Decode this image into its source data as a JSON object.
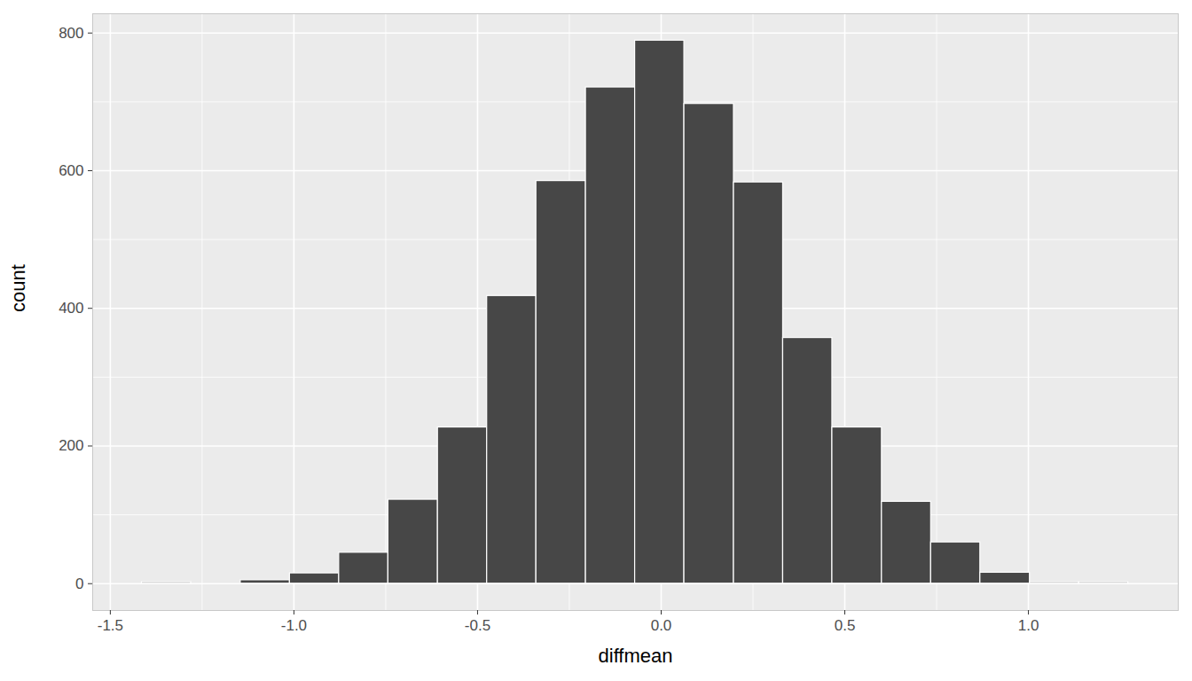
{
  "chart_data": {
    "type": "histogram",
    "xlabel": "diffmean",
    "ylabel": "count",
    "bins": [
      -1.414,
      -1.28,
      -1.145,
      -1.011,
      -0.877,
      -0.743,
      -0.608,
      -0.474,
      -0.34,
      -0.205,
      -0.071,
      0.063,
      0.198,
      0.332,
      0.466,
      0.601,
      0.735,
      0.869,
      1.004,
      1.138,
      1.272
    ],
    "counts": [
      2,
      0,
      5,
      15,
      45,
      122,
      227,
      418,
      585,
      721,
      789,
      697,
      583,
      357,
      227,
      119,
      60,
      16,
      2,
      2
    ],
    "color": "#474747",
    "xlim": [
      -1.548,
      1.408
    ],
    "ylim": [
      -39,
      828
    ],
    "xticks": [
      {
        "value": -1.5,
        "label": "-1.5"
      },
      {
        "value": -1,
        "label": "-1.0"
      },
      {
        "value": -0.5,
        "label": "-0.5"
      },
      {
        "value": 0,
        "label": "0.0"
      },
      {
        "value": 0.5,
        "label": "0.5"
      },
      {
        "value": 1,
        "label": "1.0"
      }
    ],
    "yticks": [
      0,
      200,
      400,
      600,
      800
    ],
    "grid": true
  }
}
